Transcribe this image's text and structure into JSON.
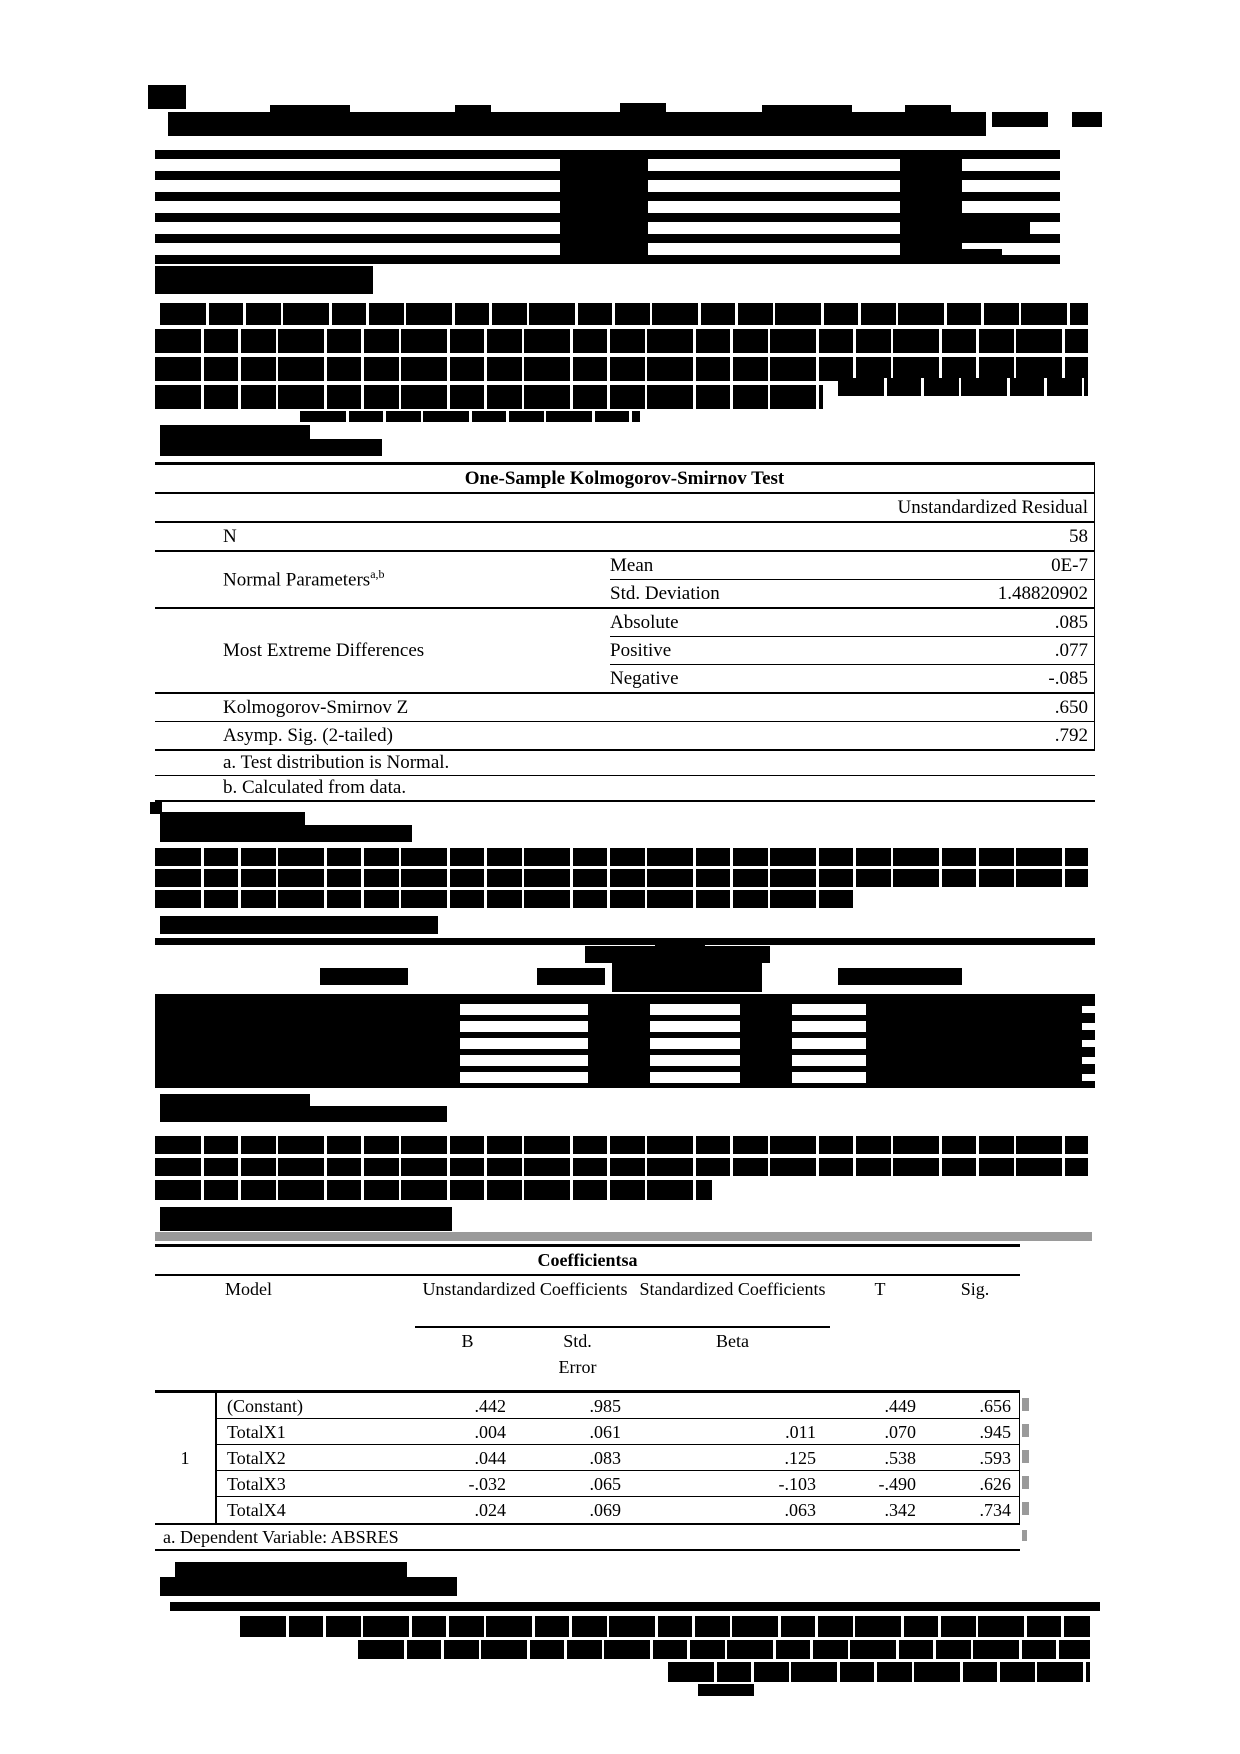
{
  "colors": {
    "redaction": "#000000",
    "page_bg": "#ffffff",
    "shadow_grey": "#9a9a9a"
  },
  "ks_table": {
    "title": "One-Sample Kolmogorov-Smirnov Test",
    "column_header": "Unstandardized Residual",
    "n_label": "N",
    "n_value": "58",
    "normal_params_label": "Normal Parameters",
    "normal_params_sup": "a,b",
    "mean_label": "Mean",
    "mean_value": "0E-7",
    "std_label": "Std. Deviation",
    "std_value": "1.48820902",
    "extreme_label": "Most Extreme Differences",
    "absolute_label": "Absolute",
    "absolute_value": ".085",
    "positive_label": "Positive",
    "positive_value": ".077",
    "negative_label": "Negative",
    "negative_value": "-.085",
    "ksz_label": "Kolmogorov-Smirnov Z",
    "ksz_value": ".650",
    "sig_label": "Asymp. Sig. (2-tailed)",
    "sig_value": ".792",
    "footnote_a": "a. Test distribution is Normal.",
    "footnote_b": "b. Calculated from data."
  },
  "coef_table": {
    "title": "Coefficientsa",
    "header_model": "Model",
    "header_unstd": "Unstandardized Coefficients",
    "header_std": "Standardized Coefficients",
    "header_t": "T",
    "header_sig": "Sig.",
    "header_b": "B",
    "header_se": "Std. Error",
    "header_beta": "Beta",
    "model_number": "1",
    "rows": [
      {
        "label": "(Constant)",
        "b": ".442",
        "se": ".985",
        "beta": "",
        "t": ".449",
        "sig": ".656"
      },
      {
        "label": "TotalX1",
        "b": ".004",
        "se": ".061",
        "beta": ".011",
        "t": ".070",
        "sig": ".945"
      },
      {
        "label": "TotalX2",
        "b": ".044",
        "se": ".083",
        "beta": ".125",
        "t": ".538",
        "sig": ".593"
      },
      {
        "label": "TotalX3",
        "b": "-.032",
        "se": ".065",
        "beta": "-.103",
        "t": "-.490",
        "sig": ".626"
      },
      {
        "label": "TotalX4",
        "b": ".024",
        "se": ".069",
        "beta": ".063",
        "t": ".342",
        "sig": ".734"
      }
    ],
    "footnote": "a. Dependent Variable: ABSRES"
  }
}
